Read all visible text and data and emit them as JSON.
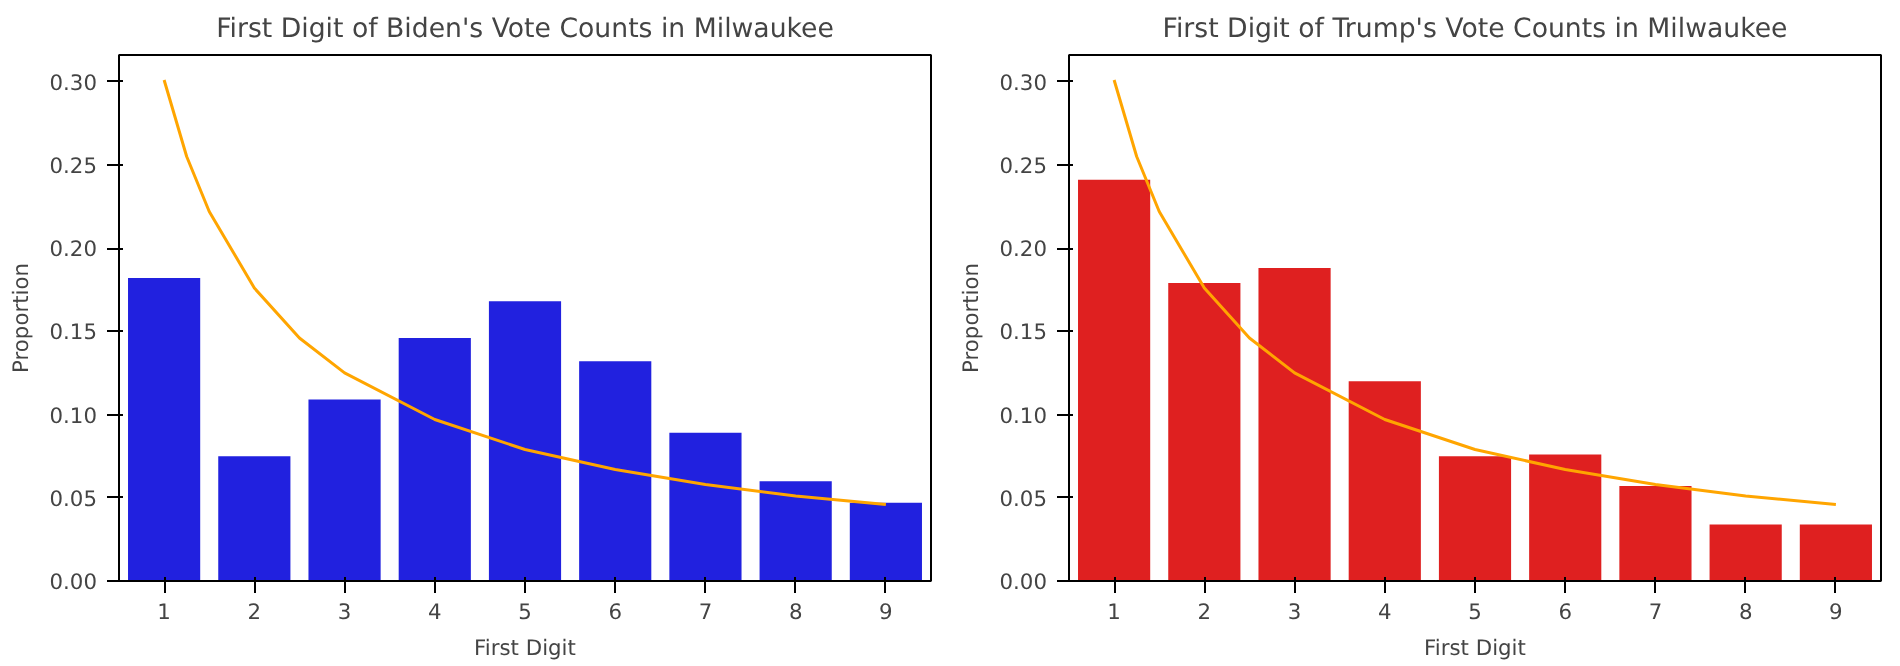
{
  "chart_data": [
    {
      "type": "bar",
      "title": "First Digit of Biden's Vote Counts in Milwaukee",
      "xlabel": "First Digit",
      "ylabel": "Proportion",
      "x": [
        1,
        2,
        3,
        4,
        5,
        6,
        7,
        8,
        9
      ],
      "xlim": [
        0.5,
        9.5
      ],
      "xticks": [
        1,
        2,
        3,
        4,
        5,
        6,
        7,
        8,
        9
      ],
      "ylim": [
        0,
        0.316
      ],
      "yticks": [
        {
          "value": 0,
          "label": "0.00"
        },
        {
          "value": 0.05,
          "label": "0.05"
        },
        {
          "value": 0.1,
          "label": "0.10"
        },
        {
          "value": 0.15,
          "label": "0.15"
        },
        {
          "value": 0.2,
          "label": "0.20"
        },
        {
          "value": 0.25,
          "label": "0.25"
        },
        {
          "value": 0.3,
          "label": "0.30"
        }
      ],
      "grid": false,
      "series": [
        {
          "color": "#2121df",
          "values": [
            0.182,
            0.075,
            0.109,
            0.146,
            0.168,
            0.132,
            0.089,
            0.06,
            0.047
          ]
        },
        {
          "type": "line",
          "color": "#ffa500",
          "x": [
            1,
            1.25,
            1.5,
            2,
            2.5,
            3,
            4,
            5,
            6,
            7,
            8,
            9
          ],
          "values": [
            0.301,
            0.255,
            0.222,
            0.176,
            0.146,
            0.125,
            0.097,
            0.079,
            0.067,
            0.058,
            0.051,
            0.046
          ]
        }
      ]
    },
    {
      "type": "bar",
      "title": "First Digit of Trump's Vote Counts in Milwaukee",
      "xlabel": "First Digit",
      "ylabel": "Proportion",
      "x": [
        1,
        2,
        3,
        4,
        5,
        6,
        7,
        8,
        9
      ],
      "xlim": [
        0.5,
        9.5
      ],
      "xticks": [
        1,
        2,
        3,
        4,
        5,
        6,
        7,
        8,
        9
      ],
      "ylim": [
        0,
        0.316
      ],
      "yticks": [
        {
          "value": 0,
          "label": "0.00"
        },
        {
          "value": 0.05,
          "label": "0.05"
        },
        {
          "value": 0.1,
          "label": "0.10"
        },
        {
          "value": 0.15,
          "label": "0.15"
        },
        {
          "value": 0.2,
          "label": "0.20"
        },
        {
          "value": 0.25,
          "label": "0.25"
        },
        {
          "value": 0.3,
          "label": "0.30"
        }
      ],
      "grid": false,
      "series": [
        {
          "color": "#df2020",
          "values": [
            0.241,
            0.179,
            0.188,
            0.12,
            0.075,
            0.076,
            0.057,
            0.034,
            0.034
          ]
        },
        {
          "type": "line",
          "color": "#ffa500",
          "x": [
            1,
            1.25,
            1.5,
            2,
            2.5,
            3,
            4,
            5,
            6,
            7,
            8,
            9
          ],
          "values": [
            0.301,
            0.255,
            0.222,
            0.176,
            0.146,
            0.125,
            0.097,
            0.079,
            0.067,
            0.058,
            0.051,
            0.046
          ]
        }
      ]
    }
  ]
}
